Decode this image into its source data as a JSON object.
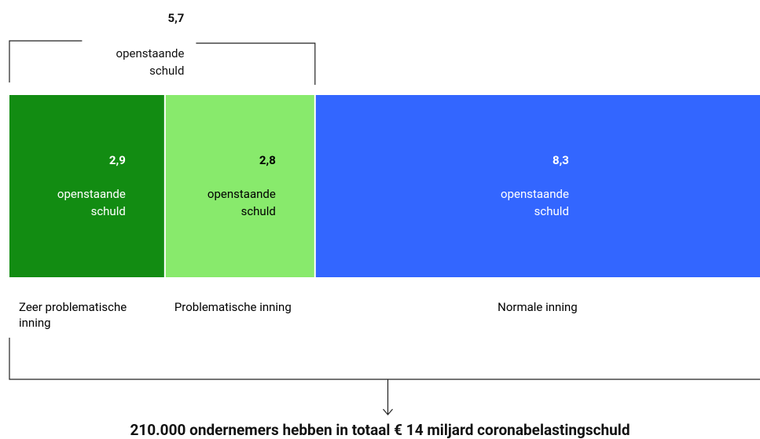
{
  "chart_data": {
    "type": "stacked-bar",
    "categories": [
      "Zeer problematische inning",
      "Problematische inning",
      "Normale inning"
    ],
    "values": [
      2.9,
      2.8,
      8.3
    ],
    "value_labels": [
      "2,9",
      "2,8",
      "8,3"
    ],
    "colors": [
      "#128c12",
      "#88ea6c",
      "#3366ff"
    ],
    "text_colors": [
      "#ffffff",
      "#000000",
      "#ffffff"
    ],
    "unit_label": "openstaande schuld",
    "bracket": {
      "value": 5.7,
      "label": "5,7"
    },
    "footnote": "210.000 ondernemers hebben in totaal € 14 miljard coronabelastingschuld"
  }
}
